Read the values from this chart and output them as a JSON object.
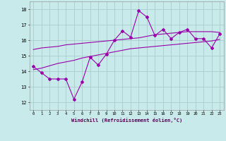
{
  "x_data": [
    0,
    1,
    2,
    3,
    4,
    5,
    6,
    7,
    8,
    9,
    10,
    11,
    12,
    13,
    14,
    15,
    16,
    17,
    18,
    19,
    20,
    21,
    22,
    23
  ],
  "y_main": [
    14.3,
    13.9,
    13.5,
    13.5,
    13.5,
    12.2,
    13.3,
    14.9,
    14.4,
    15.1,
    16.0,
    16.6,
    16.2,
    17.9,
    17.5,
    16.3,
    16.7,
    16.1,
    16.5,
    16.7,
    16.1,
    16.1,
    15.5,
    16.4
  ],
  "y_upper": [
    15.4,
    15.5,
    15.55,
    15.6,
    15.7,
    15.75,
    15.8,
    15.85,
    15.9,
    15.95,
    16.0,
    16.05,
    16.1,
    16.15,
    16.25,
    16.35,
    16.4,
    16.45,
    16.5,
    16.55,
    16.55,
    16.55,
    16.55,
    16.5
  ],
  "y_lower": [
    14.1,
    14.2,
    14.35,
    14.5,
    14.6,
    14.7,
    14.85,
    14.95,
    15.05,
    15.15,
    15.25,
    15.35,
    15.45,
    15.5,
    15.55,
    15.6,
    15.65,
    15.7,
    15.75,
    15.8,
    15.85,
    15.9,
    15.95,
    16.05
  ],
  "line_color": "#9900aa",
  "bg_color": "#c8eaea",
  "grid_color": "#aacccc",
  "xlabel": "Windchill (Refroidissement éolien,°C)",
  "ylabel_ticks": [
    12,
    13,
    14,
    15,
    16,
    17,
    18
  ],
  "xlim": [
    -0.5,
    23.5
  ],
  "ylim": [
    11.5,
    18.5
  ],
  "xticks": [
    0,
    1,
    2,
    3,
    4,
    5,
    6,
    7,
    8,
    9,
    10,
    11,
    12,
    13,
    14,
    15,
    16,
    17,
    18,
    19,
    20,
    21,
    22,
    23
  ]
}
